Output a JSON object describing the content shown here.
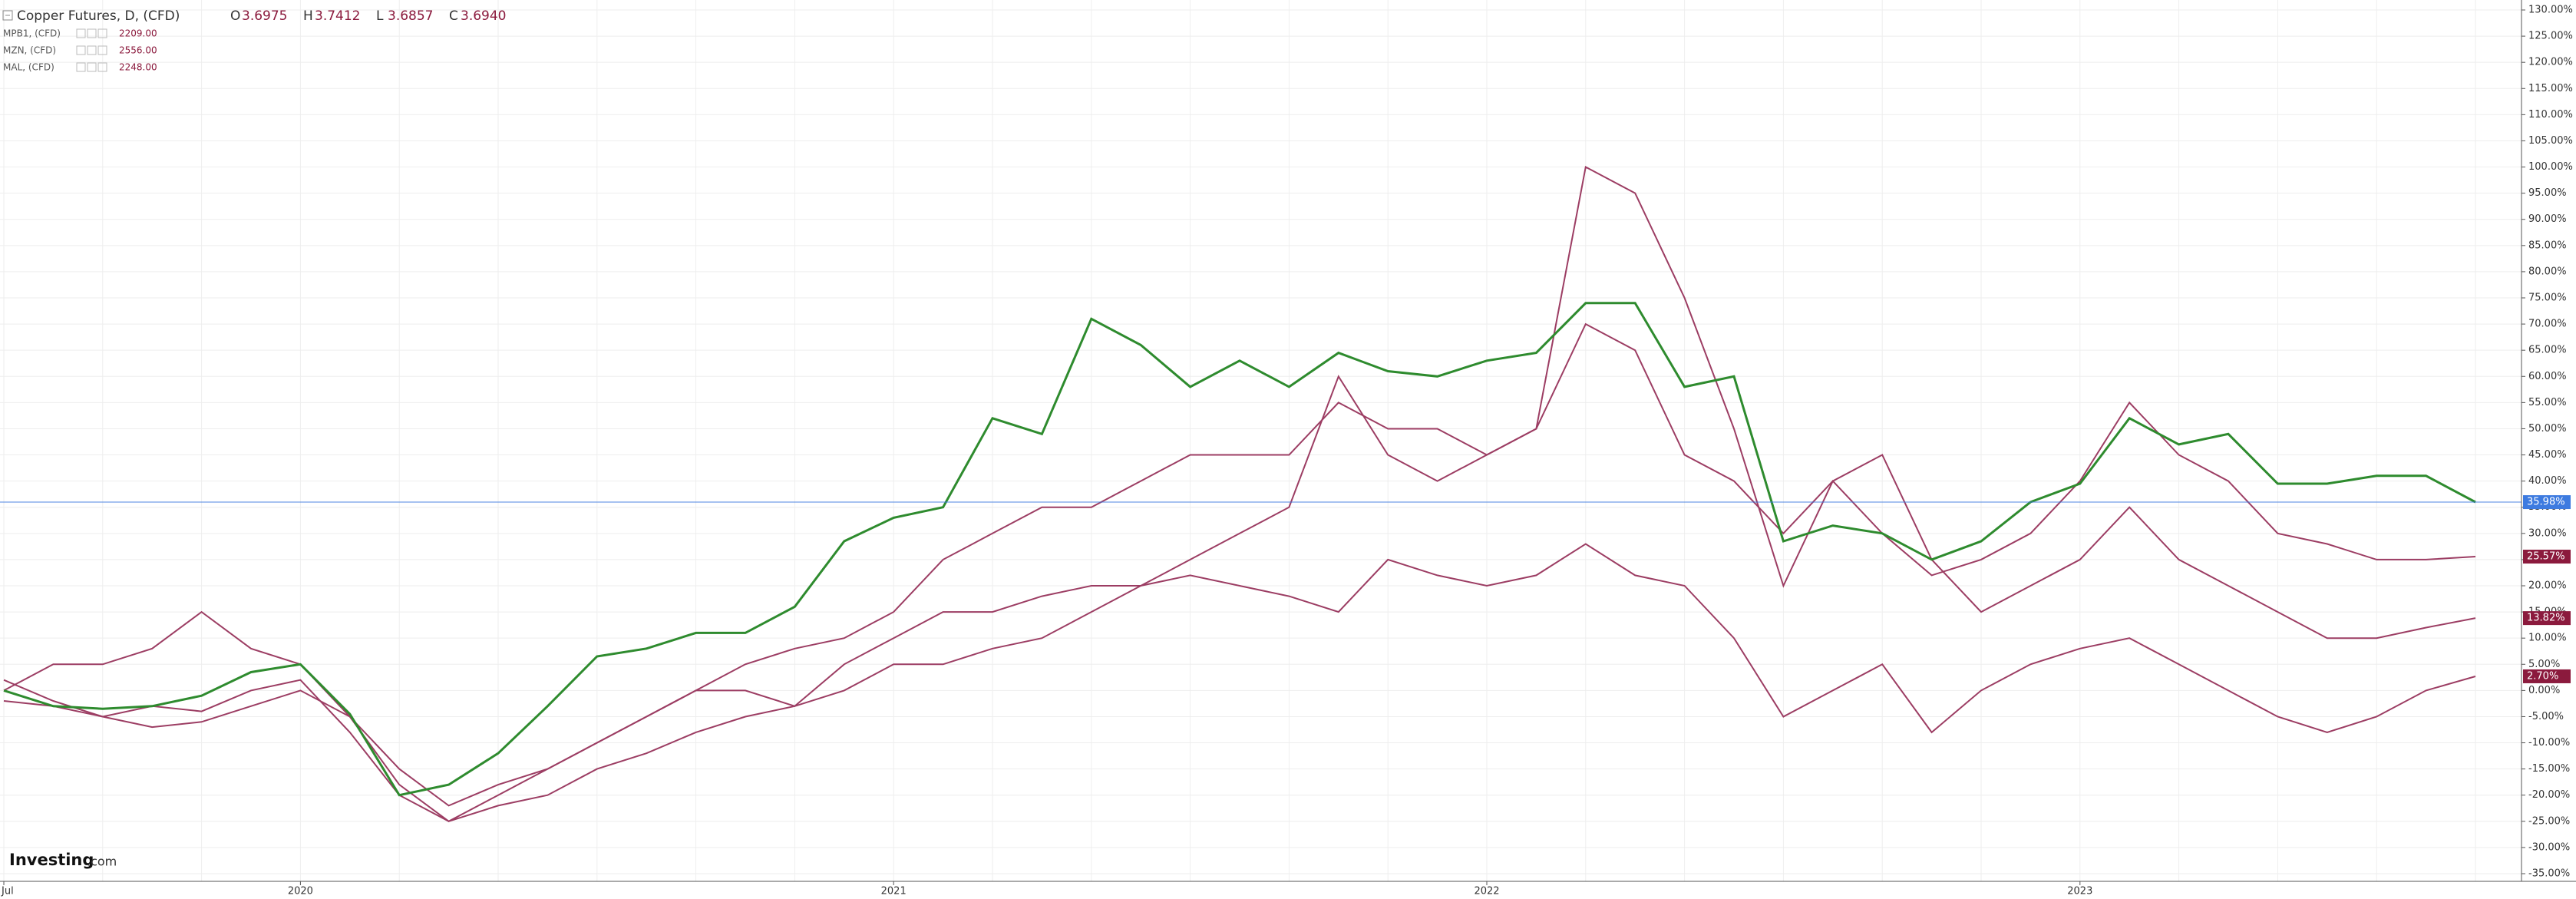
{
  "chart_data": {
    "type": "line",
    "header": {
      "ohlc": [
        {
          "label": "O",
          "value": "3.6975"
        },
        {
          "label": "H",
          "value": "3.7412"
        },
        {
          "label": "L",
          "value": "3.6857"
        },
        {
          "label": "C",
          "value": "3.6940"
        }
      ]
    },
    "brand": {
      "name": "Investing",
      "suffix": ".com"
    },
    "categories": [
      "Jul",
      null,
      null,
      null,
      null,
      null,
      "2020",
      null,
      null,
      null,
      null,
      null,
      null,
      null,
      null,
      null,
      null,
      null,
      "2021",
      null,
      null,
      null,
      null,
      null,
      null,
      null,
      null,
      null,
      null,
      null,
      "2022",
      null,
      null,
      null,
      null,
      null,
      null,
      null,
      null,
      null,
      null,
      null,
      "2023",
      null,
      null,
      null,
      null,
      null,
      null,
      null,
      null
    ],
    "series": [
      {
        "name": "Copper Futures, D, (CFD)",
        "color": "#2e8b2e",
        "line_color": "#3d7be0",
        "label_color": "#3d7be0",
        "values": [
          0,
          -3,
          -3.5,
          -3,
          -1,
          3.5,
          5,
          -4.5,
          -20,
          -18,
          -12,
          -3,
          6.5,
          8,
          11,
          11,
          16,
          28.5,
          33,
          35,
          52,
          49,
          71,
          66,
          58,
          63,
          58,
          64.5,
          61,
          60,
          63,
          64.5,
          74,
          74,
          58,
          60,
          28.5,
          31.5,
          30,
          25,
          28.5,
          36,
          39.5,
          52,
          47,
          49,
          39.5,
          39.5,
          41,
          41,
          35.98
        ],
        "value_labels": [
          null,
          null,
          null,
          null,
          null,
          null,
          null,
          null,
          null,
          null,
          null,
          null,
          null,
          null,
          null,
          null,
          null,
          null,
          null,
          null,
          null,
          null,
          null,
          null,
          null,
          null,
          null,
          null,
          null,
          null,
          null,
          null,
          null,
          null,
          null,
          null,
          null,
          null,
          null,
          null,
          null,
          null,
          null,
          null,
          null,
          null,
          null,
          null,
          null,
          null,
          "35.98%"
        ]
      },
      {
        "name": "MPB1, (CFD)",
        "legend_value": "2209.00",
        "color": "#9c3d63",
        "label_color": "#8b1a3d",
        "values": [
          2,
          -2,
          -5,
          -3,
          -4,
          0,
          2,
          -8,
          -20,
          -25,
          -22,
          -20,
          -15,
          -12,
          -8,
          -5,
          -3,
          0,
          5,
          5,
          8,
          10,
          15,
          20,
          25,
          30,
          35,
          60,
          45,
          40,
          45,
          50,
          100,
          95,
          75,
          50,
          20,
          40,
          30,
          22,
          25,
          30,
          40,
          55,
          45,
          40,
          30,
          28,
          25,
          25,
          25.57
        ],
        "value_labels": [
          null,
          null,
          null,
          null,
          null,
          null,
          null,
          null,
          null,
          null,
          null,
          null,
          null,
          null,
          null,
          null,
          null,
          null,
          null,
          null,
          null,
          null,
          null,
          null,
          null,
          null,
          null,
          null,
          null,
          null,
          null,
          null,
          null,
          null,
          null,
          null,
          null,
          null,
          null,
          null,
          null,
          null,
          null,
          null,
          null,
          null,
          null,
          null,
          null,
          null,
          "25.57%"
        ]
      },
      {
        "name": "MZN, (CFD)",
        "legend_value": "2556.00",
        "color": "#9c3d63",
        "label_color": "#8b1a3d",
        "values": [
          -2,
          -3,
          -5,
          -7,
          -6,
          -3,
          0,
          -5,
          -15,
          -22,
          -18,
          -15,
          -10,
          -5,
          0,
          5,
          8,
          10,
          15,
          25,
          30,
          35,
          35,
          40,
          45,
          45,
          45,
          55,
          50,
          50,
          45,
          50,
          70,
          65,
          45,
          40,
          30,
          40,
          45,
          25,
          15,
          20,
          25,
          35,
          25,
          20,
          15,
          10,
          10,
          12,
          13.82
        ],
        "value_labels": [
          null,
          null,
          null,
          null,
          null,
          null,
          null,
          null,
          null,
          null,
          null,
          null,
          null,
          null,
          null,
          null,
          null,
          null,
          null,
          null,
          null,
          null,
          null,
          null,
          null,
          null,
          null,
          null,
          null,
          null,
          null,
          null,
          null,
          null,
          null,
          null,
          null,
          null,
          null,
          null,
          null,
          null,
          null,
          null,
          null,
          null,
          null,
          null,
          null,
          null,
          "13.82%"
        ]
      },
      {
        "name": "MAL, (CFD)",
        "legend_value": "2248.00",
        "color": "#9c3d63",
        "label_color": "#8b1a3d",
        "values": [
          0,
          5,
          5,
          8,
          15,
          8,
          5,
          -5,
          -18,
          -25,
          -20,
          -15,
          -10,
          -5,
          0,
          0,
          -3,
          5,
          10,
          15,
          15,
          18,
          20,
          20,
          22,
          20,
          18,
          15,
          25,
          22,
          20,
          22,
          28,
          22,
          20,
          10,
          -5,
          0,
          5,
          -8,
          0,
          5,
          8,
          10,
          5,
          0,
          -5,
          -8,
          -5,
          0,
          2.7
        ],
        "value_labels": [
          null,
          null,
          null,
          null,
          null,
          null,
          null,
          null,
          null,
          null,
          null,
          null,
          null,
          null,
          null,
          null,
          null,
          null,
          null,
          null,
          null,
          null,
          null,
          null,
          null,
          null,
          null,
          null,
          null,
          null,
          null,
          null,
          null,
          null,
          null,
          null,
          null,
          null,
          null,
          null,
          null,
          null,
          null,
          null,
          null,
          null,
          null,
          null,
          null,
          null,
          "2.70%"
        ]
      }
    ],
    "ylim": [
      -35,
      130
    ],
    "yticks": [
      {
        "value": 130,
        "label": "130.00%"
      },
      {
        "value": 125,
        "label": "125.00%"
      },
      {
        "value": 120,
        "label": "120.00%"
      },
      {
        "value": 115,
        "label": "115.00%"
      },
      {
        "value": 110,
        "label": "110.00%"
      },
      {
        "value": 105,
        "label": "105.00%"
      },
      {
        "value": 100,
        "label": "100.00%"
      },
      {
        "value": 95,
        "label": "95.00%"
      },
      {
        "value": 90,
        "label": "90.00%"
      },
      {
        "value": 85,
        "label": "85.00%"
      },
      {
        "value": 80,
        "label": "80.00%"
      },
      {
        "value": 75,
        "label": "75.00%"
      },
      {
        "value": 70,
        "label": "70.00%"
      },
      {
        "value": 65,
        "label": "65.00%"
      },
      {
        "value": 60,
        "label": "60.00%"
      },
      {
        "value": 55,
        "label": "55.00%"
      },
      {
        "value": 50,
        "label": "50.00%"
      },
      {
        "value": 45,
        "label": "45.00%"
      },
      {
        "value": 40,
        "label": "40.00%"
      },
      {
        "value": 35,
        "label": "35.00%"
      },
      {
        "value": 30,
        "label": "30.00%"
      },
      {
        "value": 25,
        "label": "25.00%"
      },
      {
        "value": 20,
        "label": "20.00%"
      },
      {
        "value": 15,
        "label": "15.00%"
      },
      {
        "value": 10,
        "label": "10.00%"
      },
      {
        "value": 5,
        "label": "5.00%"
      },
      {
        "value": 0,
        "label": "0.00%"
      },
      {
        "value": -5,
        "label": "-5.00%"
      },
      {
        "value": -10,
        "label": "-10.00%"
      },
      {
        "value": -15,
        "label": "-15.00%"
      },
      {
        "value": -20,
        "label": "-20.00%"
      },
      {
        "value": -25,
        "label": "-25.00%"
      },
      {
        "value": -30,
        "label": "-30.00%"
      },
      {
        "value": -35,
        "label": "-35.00%"
      }
    ],
    "grid": true
  }
}
